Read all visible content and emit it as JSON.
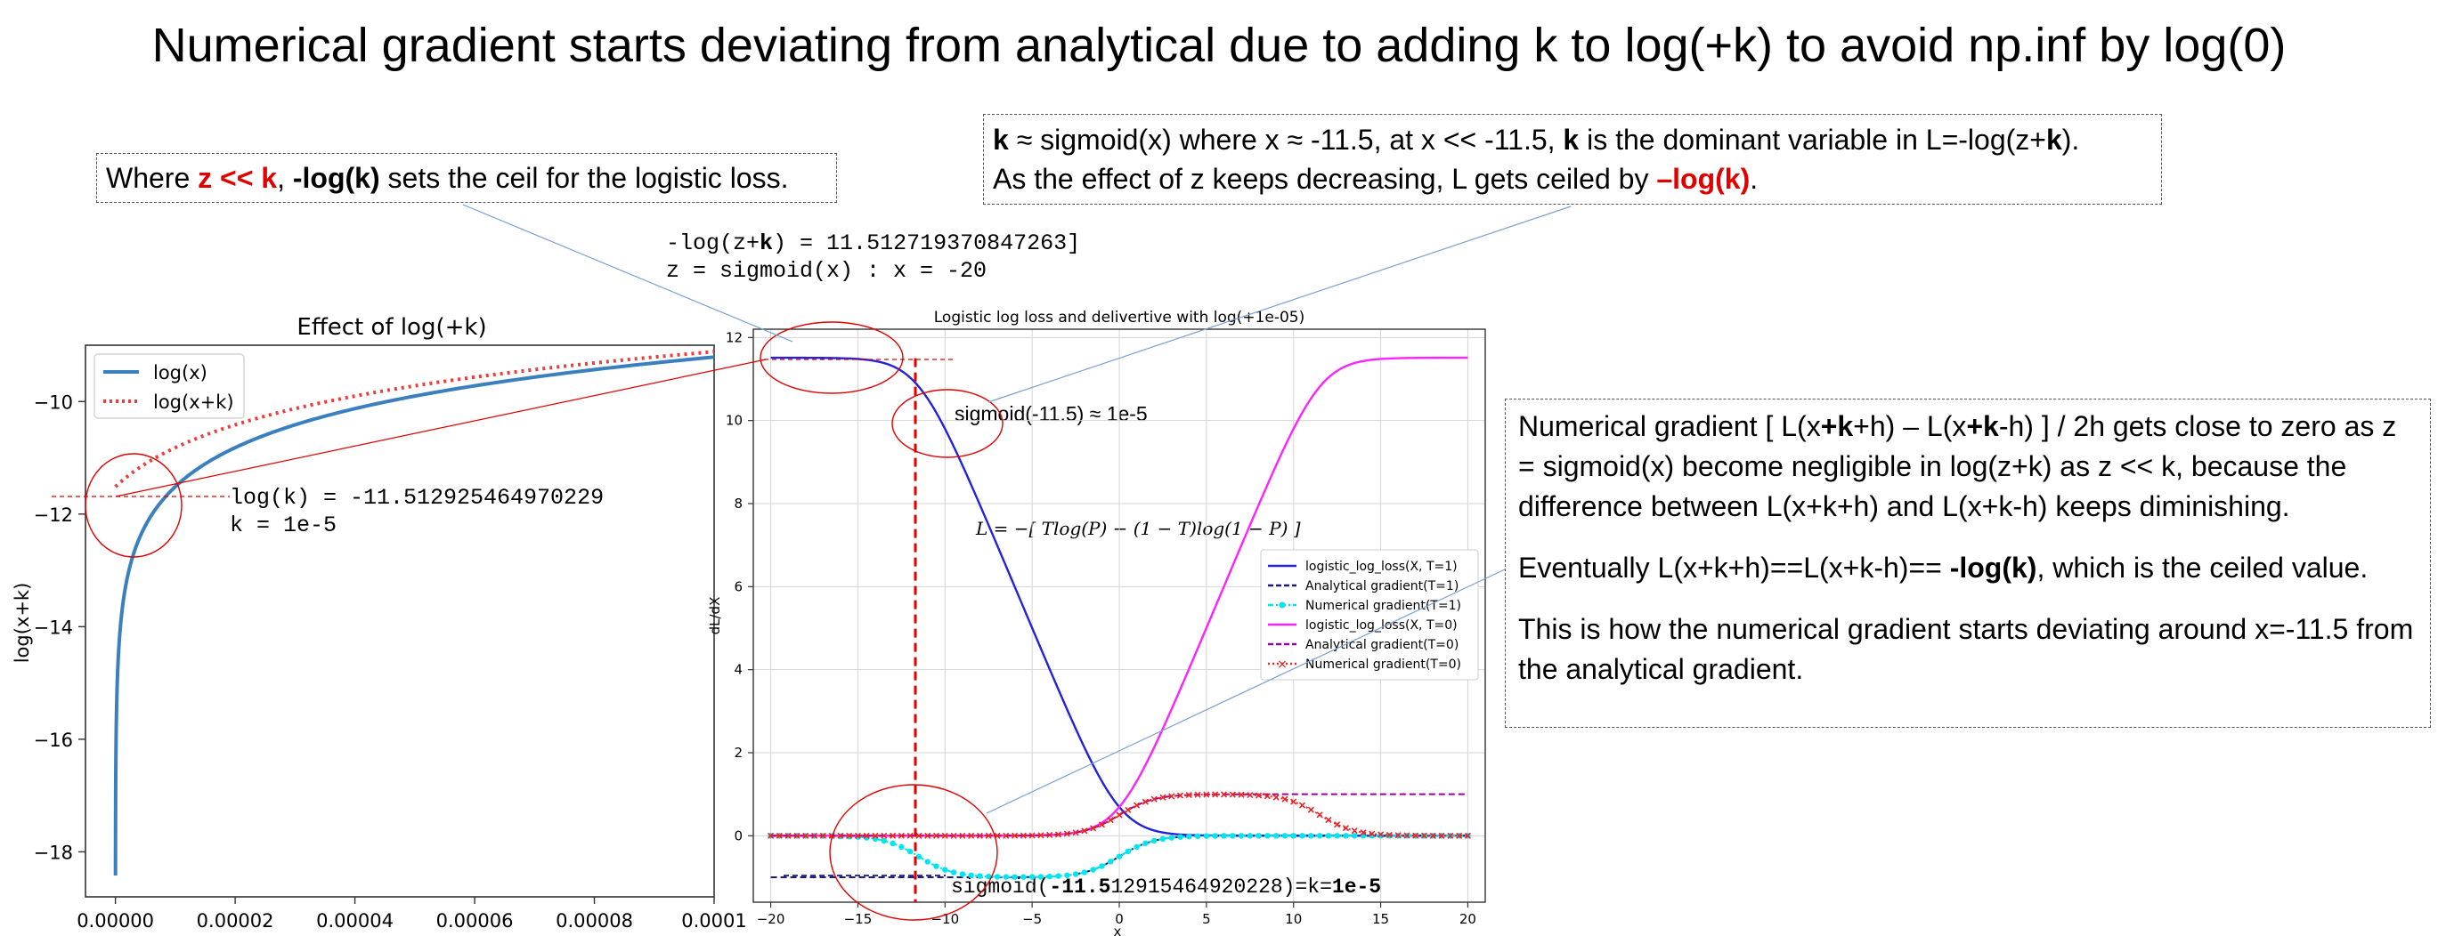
{
  "title": "Numerical gradient starts deviating from analytical due to adding k to log(+k) to avoid np.inf by log(0)",
  "callout_left": {
    "p1": "Where ",
    "p2": "z << k",
    "p3": ", ",
    "p4": "-log(k)",
    "p5": " sets the ceil for the logistic loss."
  },
  "callout_top": {
    "l1a": "k",
    "l1b": " ≈ sigmoid(x) where x ≈ -11.5, at x << -11.5, ",
    "l1c": "k",
    "l1d": " is the dominant variable in L=-log(z+",
    "l1e": "k",
    "l1f": ").",
    "l2a": "As the effect of z keeps decreasing, L gets ceiled by ",
    "l2b": "–log(k)",
    "l2c": "."
  },
  "callout_right": {
    "para1a": "Numerical gradient  [ L(x",
    "para1b": "+k",
    "para1c": "+h) – L(x",
    "para1d": "+k",
    "para1e": "-h) ] / 2h gets close to zero as z = sigmoid(x) become negligible in log(z+k) as z << k, because the difference between L(x+k+h) and L(x+k-h) keeps diminishing.",
    "para2a": "Eventually L(x+k+h)==L(x+k-h)== ",
    "para2b": "-log(k)",
    "para2c": ", which is the ceiled value.",
    "para3": "This is how the numerical gradient starts deviating around x=-11.5 from the analytical gradient."
  },
  "code_top": {
    "line1a": "-log(z+",
    "line1b": "k",
    "line1c": ") = 11.512719370847263]",
    "line2": "z = sigmoid(x) : x = -20"
  },
  "annot_logk": {
    "line1": "log(k) = -11.512925464970229",
    "line2": "k = 1e-5"
  },
  "annot_sigmoid": "sigmoid(-11.5) ≈ 1e-5",
  "annot_bottom": {
    "p1": "sigmoid(",
    "p2": "-11.5",
    "p3": "12915464920228)=k=",
    "p4": "1e-5"
  },
  "formula": "L = −[ Tlog(P) − (1 − T)log(1 − P) ]",
  "colors": {
    "blue_curve": "#3a80bf",
    "red": "#e00000",
    "blue": "#2222dd",
    "navy": "#1a1a80",
    "cyan": "#00e5ee",
    "magenta": "#ff22ff",
    "purple": "#990099"
  },
  "chart_data": [
    {
      "type": "line",
      "title": "Effect of log(+k)",
      "xlabel": "",
      "ylabel": "log(x+k)",
      "xlim": [
        -5e-06,
        0.0001
      ],
      "ylim": [
        -18.8,
        -9.0
      ],
      "xticks": [
        0,
        2e-05,
        4e-05,
        6e-05,
        8e-05,
        0.0001
      ],
      "xtick_labels": [
        "0.00000",
        "0.00002",
        "0.00004",
        "0.00006",
        "0.00008",
        "0.0001"
      ],
      "yticks": [
        -18,
        -16,
        -14,
        -12,
        -10
      ],
      "ytick_labels": [
        "−18",
        "−16",
        "−14",
        "−12",
        "−10"
      ],
      "grid": false,
      "legend": "top-left",
      "series": [
        {
          "name": "log(x)",
          "style": "solid",
          "function": "log(x)",
          "x_start": 1e-08,
          "x_end": 0.0001
        },
        {
          "name": "log(x+k)",
          "style": "dotted",
          "function": "log(x+1e-5)",
          "x_start": 0,
          "x_end": 0.0001
        }
      ]
    },
    {
      "type": "line",
      "title": "Logistic log loss and delivertive with log(+1e-05)",
      "xlabel": "x",
      "ylabel": "dL/dX",
      "xlim": [
        -21,
        21
      ],
      "ylim": [
        -1.6,
        12.2
      ],
      "xticks": [
        -20,
        -15,
        -10,
        -5,
        0,
        5,
        10,
        15,
        20
      ],
      "xtick_labels": [
        "−20",
        "−15",
        "−10",
        "−5",
        "0",
        "5",
        "10",
        "15",
        "20"
      ],
      "yticks": [
        0,
        2,
        4,
        6,
        8,
        10,
        12
      ],
      "ytick_labels": [
        "0",
        "2",
        "4",
        "6",
        "8",
        "10",
        "12"
      ],
      "grid": true,
      "legend": "center-right",
      "k": 1e-05,
      "series": [
        {
          "name": "logistic_log_loss(X, T=1)",
          "style": "solid",
          "color": "#2222dd",
          "function": "-log(sigmoid(x)+k)"
        },
        {
          "name": "Analytical gradient(T=1)",
          "style": "dashed",
          "color": "#1a1a80",
          "function": "sigmoid(x)-1"
        },
        {
          "name": "Numerical gradient(T=1)",
          "style": "dashdot-marker",
          "color": "#00e5ee",
          "function": "-sigmoid(x)(1-sigmoid(x))/(sigmoid(x)+k)"
        },
        {
          "name": "logistic_log_loss(X, T=0)",
          "style": "solid",
          "color": "#ff22ff",
          "function": "-log(1-sigmoid(x)+k)"
        },
        {
          "name": "Analytical gradient(T=0)",
          "style": "dashed",
          "color": "#990099",
          "function": "sigmoid(x)"
        },
        {
          "name": "Numerical gradient(T=0)",
          "style": "dotted-marker",
          "color": "#ee2222",
          "function": "sigmoid(x)(1-sigmoid(x))/(1-sigmoid(x)+k)"
        }
      ],
      "vline_x": -11.5
    }
  ]
}
